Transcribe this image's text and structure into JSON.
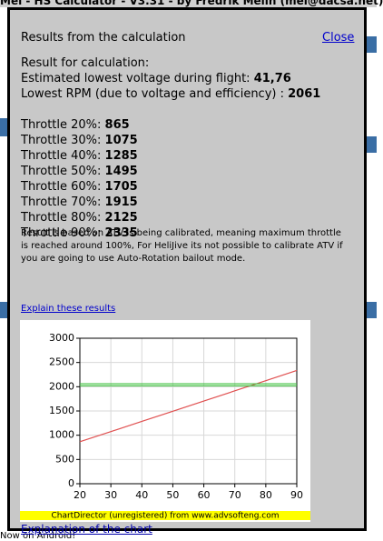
{
  "background": {
    "title": "Mel - HS Calculator - V3.31 - by Fredrik Melin (mel@dacsa.net)",
    "footer": "Now on Android!"
  },
  "dialog": {
    "title": "Results from the calculation",
    "close": "Close",
    "heading": "Result for calculation:",
    "voltage_label": "Estimated lowest voltage during flight:",
    "voltage_value": "41,76",
    "rpm_label": "Lowest RPM (due to voltage and efficiency) :",
    "rpm_value": "2061",
    "throttle": [
      {
        "label": "Throttle 20%:",
        "value": "865"
      },
      {
        "label": "Throttle 30%:",
        "value": "1075"
      },
      {
        "label": "Throttle 40%:",
        "value": "1285"
      },
      {
        "label": "Throttle 50%:",
        "value": "1495"
      },
      {
        "label": "Throttle 60%:",
        "value": "1705"
      },
      {
        "label": "Throttle 70%:",
        "value": "1915"
      },
      {
        "label": "Throttle 80%:",
        "value": "2125"
      },
      {
        "label": "Throttle 90%:",
        "value": "2335"
      }
    ],
    "note": "Result is based on ATV is being calibrated, meaning maximum throttle is reached around 100%, For HeliJive its not possible to calibrate ATV if you are going to use Auto-Rotation bailout mode.",
    "explain_link": "Explain these results",
    "chart_link": "Explanation of the chart"
  },
  "chart_data": {
    "type": "line",
    "footer": "ChartDirector (unregistered) from www.advsofteng.com",
    "x": [
      20,
      30,
      40,
      50,
      60,
      70,
      80,
      90
    ],
    "series": [
      {
        "color": "#e05050",
        "values": [
          865,
          1075,
          1285,
          1495,
          1705,
          1915,
          2125,
          2335
        ]
      },
      {
        "color": "#40c040",
        "values": [
          2061,
          2061,
          2061,
          2061,
          2061,
          2061,
          2061,
          2061
        ]
      },
      {
        "color": "#40c040",
        "values": [
          2020,
          2020,
          2020,
          2020,
          2020,
          2020,
          2020,
          2020
        ]
      }
    ],
    "xlim": [
      20,
      90
    ],
    "xticks": [
      20,
      30,
      40,
      50,
      60,
      70,
      80,
      90
    ],
    "ylim": [
      0,
      3000
    ],
    "yticks": [
      0,
      500,
      1000,
      1500,
      2000,
      2500,
      3000
    ],
    "grid": true
  }
}
